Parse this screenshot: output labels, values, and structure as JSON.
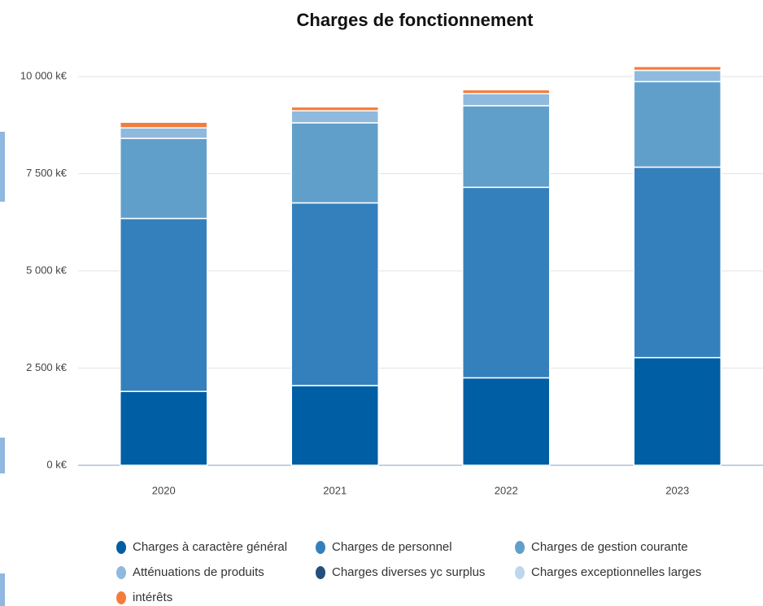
{
  "chart_data": {
    "type": "stacked_bar",
    "title": "Charges de fonctionnement",
    "categories": [
      "2020",
      "2021",
      "2022",
      "2023"
    ],
    "series": [
      {
        "name": "Charges à caractère général",
        "color": "#005ea5",
        "values": [
          1900,
          2050,
          2250,
          2770
        ]
      },
      {
        "name": "Charges de personnel",
        "color": "#3480bd",
        "values": [
          4450,
          4700,
          4900,
          4900
        ]
      },
      {
        "name": "Charges de gestion courante",
        "color": "#619fcb",
        "values": [
          2060,
          2060,
          2100,
          2200
        ]
      },
      {
        "name": "Atténuations de produits",
        "color": "#8fbadd",
        "values": [
          270,
          310,
          310,
          290
        ]
      },
      {
        "name": "Charges diverses yc surplus",
        "color": "#234f7d",
        "values": [
          0,
          0,
          0,
          0
        ]
      },
      {
        "name": "Charges exceptionnelles larges",
        "color": "#bed7ec",
        "values": [
          0,
          0,
          0,
          0
        ]
      },
      {
        "name": "intérêts",
        "color": "#f47c3c",
        "values": [
          145,
          100,
          100,
          100
        ]
      }
    ],
    "ylim": [
      0,
      10400
    ],
    "yticks": [
      {
        "value": 0,
        "label": "0 k€"
      },
      {
        "value": 2500,
        "label": "2 500 k€"
      },
      {
        "value": 5000,
        "label": "5 000 k€"
      },
      {
        "value": 7500,
        "label": "7 500 k€"
      },
      {
        "value": 10000,
        "label": "10 000 k€"
      }
    ],
    "grid": true
  }
}
